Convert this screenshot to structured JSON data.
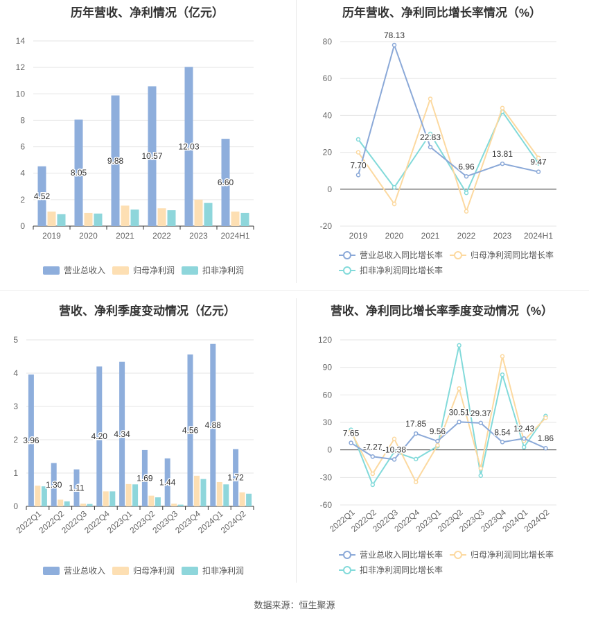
{
  "source": "数据来源：恒生聚源",
  "colors": {
    "rev": "#8eaedc",
    "net": "#fddfb3",
    "deduct": "#8ed6db",
    "rev_line": "#8ba9d8",
    "net_line": "#fcd9a0",
    "deduct_line": "#82dada"
  },
  "chart_data": [
    {
      "type": "bar",
      "title": "历年营收、净利情况（亿元）",
      "categories": [
        "2019",
        "2020",
        "2021",
        "2022",
        "2023",
        "2024H1"
      ],
      "ylim": [
        0,
        14
      ],
      "yticks": [
        0,
        2,
        4,
        6,
        8,
        10,
        12,
        14
      ],
      "series": [
        {
          "name": "营业总收入",
          "values": [
            4.52,
            8.05,
            9.88,
            10.57,
            12.03,
            6.6
          ],
          "labels": [
            "4.52",
            "8.05",
            "9.88",
            "10.57",
            "12.03",
            "6.60"
          ]
        },
        {
          "name": "归母净利润",
          "values": [
            1.1,
            1.0,
            1.55,
            1.35,
            2.0,
            1.1
          ]
        },
        {
          "name": "扣非净利润",
          "values": [
            0.9,
            0.95,
            1.25,
            1.2,
            1.75,
            1.0
          ]
        }
      ],
      "legend": "bottom"
    },
    {
      "type": "line",
      "title": "历年营收、净利同比增长率情况（%）",
      "categories": [
        "2019",
        "2020",
        "2021",
        "2022",
        "2023",
        "2024H1"
      ],
      "ylim": [
        -20,
        80
      ],
      "yticks": [
        -20,
        0,
        20,
        40,
        60,
        80
      ],
      "series": [
        {
          "name": "营业总收入同比增长率",
          "values": [
            7.7,
            78.13,
            22.83,
            6.96,
            13.81,
            9.47
          ],
          "labels": [
            "7.70",
            "78.13",
            "22.83",
            "6.96",
            "13.81",
            "9.47"
          ]
        },
        {
          "name": "归母净利润同比增长率",
          "values": [
            20,
            -8,
            49,
            -12,
            44,
            17
          ]
        },
        {
          "name": "扣非净利润同比增长率",
          "values": [
            27,
            1,
            30,
            -2,
            42,
            14
          ]
        }
      ],
      "legend": "bottom"
    },
    {
      "type": "bar",
      "title": "营收、净利季度变动情况（亿元）",
      "categories": [
        "2022Q1",
        "2022Q2",
        "2022Q3",
        "2022Q4",
        "2023Q1",
        "2023Q2",
        "2023Q3",
        "2023Q4",
        "2024Q1",
        "2024Q2"
      ],
      "ylim": [
        0,
        5
      ],
      "yticks": [
        0,
        1,
        2,
        3,
        4,
        5
      ],
      "series": [
        {
          "name": "营业总收入",
          "values": [
            3.96,
            1.3,
            1.11,
            4.2,
            4.34,
            1.69,
            1.44,
            4.56,
            4.88,
            1.72
          ],
          "labels": [
            "3.96",
            "1.30",
            "1.11",
            "4.20",
            "4.34",
            "1.69",
            "1.44",
            "4.56",
            "4.88",
            "1.72"
          ]
        },
        {
          "name": "归母净利润",
          "values": [
            0.62,
            0.2,
            0.08,
            0.45,
            0.67,
            0.32,
            0.08,
            0.92,
            0.73,
            0.42
          ]
        },
        {
          "name": "扣非净利润",
          "values": [
            0.6,
            0.15,
            0.07,
            0.45,
            0.66,
            0.27,
            0.05,
            0.82,
            0.66,
            0.38
          ]
        }
      ],
      "legend": "bottom"
    },
    {
      "type": "line",
      "title": "营收、净利同比增长率季度变动情况（%）",
      "categories": [
        "2022Q1",
        "2022Q2",
        "2022Q3",
        "2022Q4",
        "2023Q1",
        "2023Q2",
        "2023Q3",
        "2023Q4",
        "2024Q1",
        "2024Q2"
      ],
      "ylim": [
        -60,
        120
      ],
      "yticks": [
        -60,
        -30,
        0,
        30,
        60,
        90,
        120
      ],
      "series": [
        {
          "name": "营业总收入同比增长率",
          "values": [
            7.65,
            -7.27,
            -10.38,
            17.85,
            9.56,
            30.51,
            29.37,
            8.54,
            12.43,
            1.86
          ],
          "labels": [
            "7.65",
            "-7.27",
            "-10.38",
            "17.85",
            "9.56",
            "30.51",
            "29.37",
            "8.54",
            "12.43",
            "1.86"
          ]
        },
        {
          "name": "归母净利润同比增长率",
          "values": [
            20,
            -26,
            12,
            -35,
            5,
            67,
            -20,
            102,
            10,
            35
          ]
        },
        {
          "name": "扣非净利润同比增长率",
          "values": [
            22,
            -38,
            -2,
            -10,
            4,
            114,
            -28,
            82,
            3,
            37
          ]
        }
      ],
      "legend": "bottom"
    }
  ]
}
